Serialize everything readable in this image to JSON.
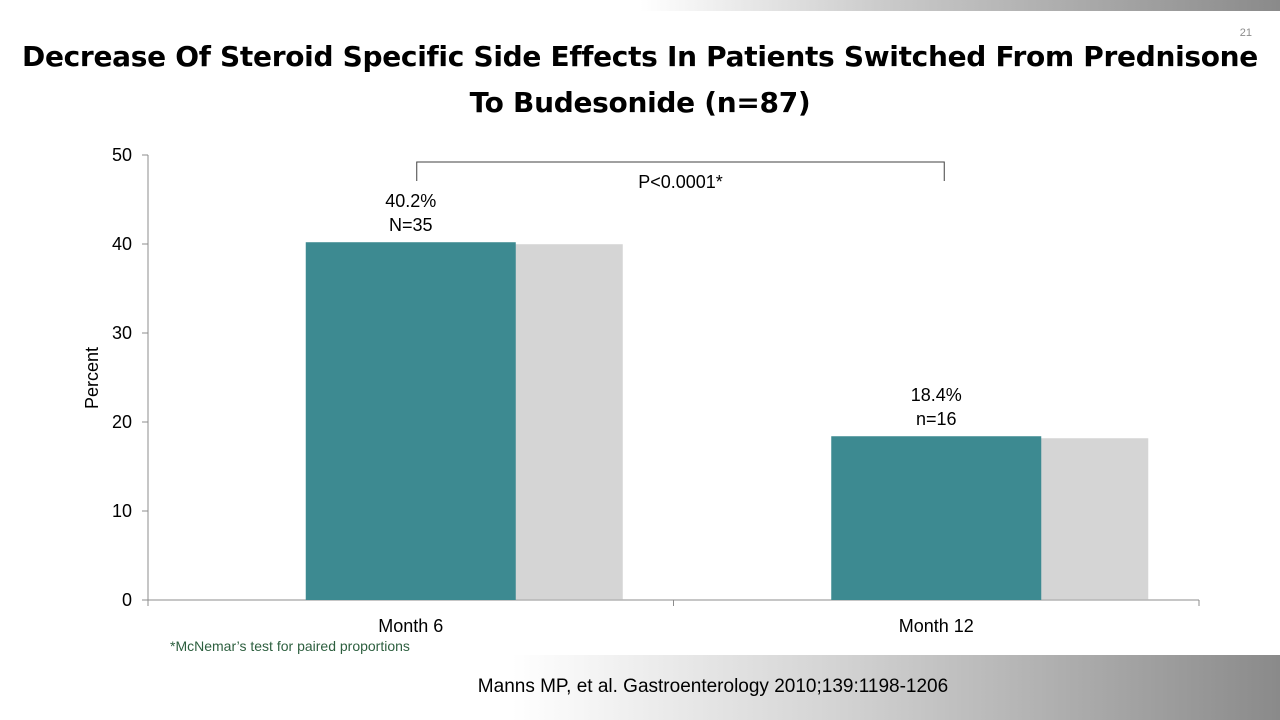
{
  "slide": {
    "title": "Decrease Of Steroid Specific Side Effects In Patients Switched From Prednisone To Budesonide (n=87)",
    "page_number": "21",
    "footnote": "*McNemar’s test for paired proportions",
    "citation": "Manns MP, et al. Gastroenterology 2010;139:1198-1206"
  },
  "chart_data": {
    "type": "bar",
    "title": "",
    "xlabel": "",
    "ylabel": "Percent",
    "categories": [
      "Month 6",
      "Month 12"
    ],
    "values": [
      40.2,
      18.4
    ],
    "data_labels": [
      [
        "40.2%",
        "N=35"
      ],
      [
        "18.4%",
        "n=16"
      ]
    ],
    "ylim": [
      0,
      50
    ],
    "yticks": [
      0,
      10,
      20,
      30,
      40,
      50
    ],
    "bar_color": "#3d8a91",
    "grid": false,
    "legend": "none",
    "annotation": {
      "text": "P<0.0001*",
      "from_category": "Month 6",
      "to_category": "Month 12"
    }
  }
}
